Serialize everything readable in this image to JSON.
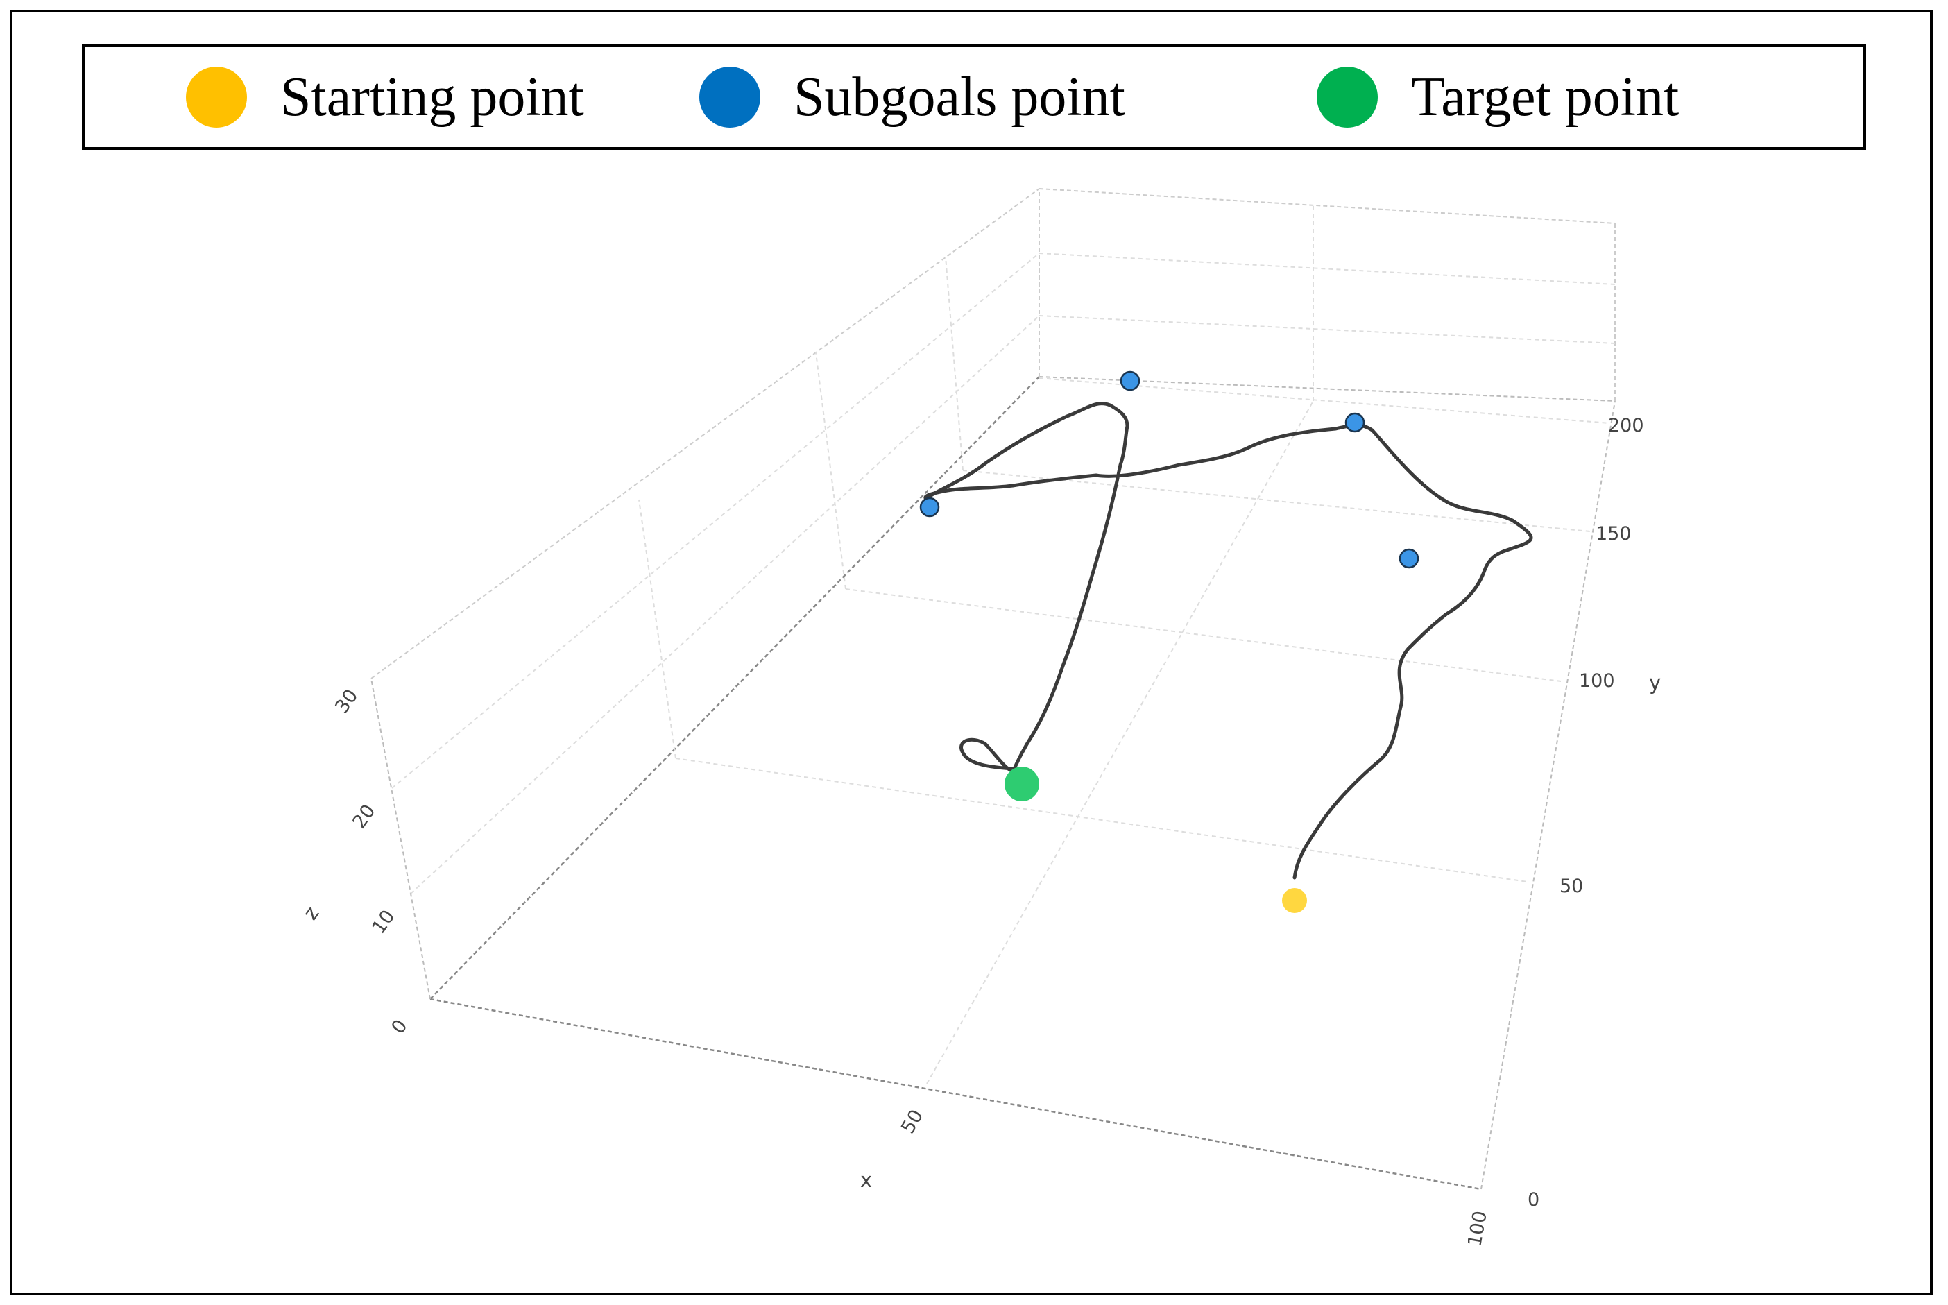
{
  "legend": {
    "items": [
      {
        "label": "Starting point",
        "color": "#FFC000"
      },
      {
        "label": "Subgoals point",
        "color": "#0070C0"
      },
      {
        "label": "Target point",
        "color": "#00B050"
      }
    ]
  },
  "chart_data": {
    "type": "scatter",
    "title": "",
    "xlabel": "x",
    "ylabel": "y",
    "zlabel": "z",
    "xlim": [
      0,
      100
    ],
    "ylim": [
      0,
      250
    ],
    "zlim": [
      0,
      30
    ],
    "x_ticks": [
      "0",
      "50",
      "100"
    ],
    "y_ticks": [
      "0",
      "50",
      "100",
      "150",
      "200"
    ],
    "z_ticks": [
      "0",
      "10",
      "20",
      "30"
    ],
    "grid": true,
    "legend_position": "top",
    "points": {
      "start": {
        "x": 55,
        "y": 48,
        "z": 0,
        "color": "#FFD740"
      },
      "subgoals": [
        {
          "x": 40,
          "y": 205,
          "z": 0
        },
        {
          "x": 27,
          "y": 158,
          "z": 0
        },
        {
          "x": 48,
          "y": 168,
          "z": 10
        },
        {
          "x": 48,
          "y": 162,
          "z": 0
        }
      ],
      "subgoal_color": "#3B95E6",
      "target": {
        "x": 50,
        "y": 92,
        "z": 0,
        "color": "#2ECC71"
      }
    },
    "trajectory_color": "#3a3a3a"
  }
}
